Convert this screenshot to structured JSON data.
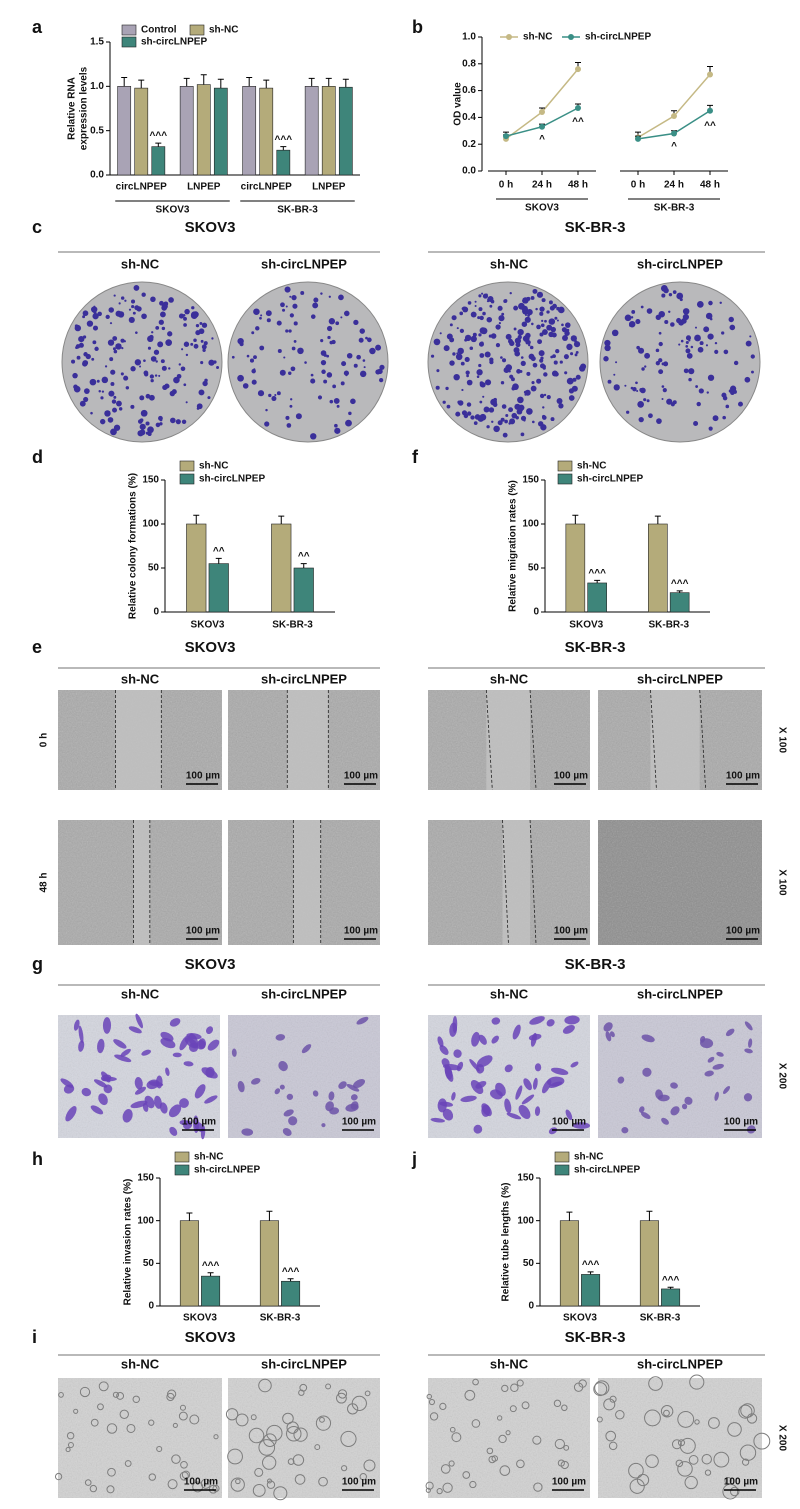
{
  "chart_data": [
    {
      "type": "bar",
      "panel_label": "a",
      "y_label": [
        "Relative RNA",
        "expression levels"
      ],
      "categories": [
        "circLNPEP",
        "LNPEP",
        "circLNPEP",
        "LNPEP"
      ],
      "groups": [
        "SKOV3",
        "SK-BR-3"
      ],
      "series": [
        {
          "name": "Control",
          "color": "#a9a3b5",
          "values": [
            1.0,
            1.0,
            1.0,
            1.0
          ],
          "errors": [
            0.1,
            0.09,
            0.1,
            0.09
          ],
          "annotations": [
            null,
            null,
            null,
            null
          ]
        },
        {
          "name": "sh-NC",
          "color": "#b4ab7a",
          "values": [
            0.98,
            1.02,
            0.98,
            1.0
          ],
          "errors": [
            0.09,
            0.11,
            0.09,
            0.09
          ],
          "annotations": [
            null,
            null,
            null,
            null
          ]
        },
        {
          "name": "sh-circLNPEP",
          "color": "#3e857a",
          "values": [
            0.32,
            0.98,
            0.28,
            0.99
          ],
          "errors": [
            0.04,
            0.1,
            0.04,
            0.09
          ],
          "annotations": [
            "^^^",
            null,
            "^^^",
            null
          ]
        }
      ],
      "ylim": [
        0,
        1.5
      ],
      "yticks": [
        {
          "value": 0,
          "label": "0.0"
        },
        0.5,
        {
          "value": 1,
          "label": "1.0"
        },
        1.5
      ]
    },
    {
      "type": "line",
      "panel_label": "b",
      "y_label": "OD value",
      "categories": [
        "0 h",
        "24 h",
        "48 h",
        "0 h",
        "24 h",
        "48 h"
      ],
      "groups": [
        "SKOV3",
        "SK-BR-3"
      ],
      "series": [
        {
          "name": "sh-NC",
          "color": "#c5b985",
          "values": [
            0.24,
            0.44,
            0.76,
            0.25,
            0.41,
            0.72
          ],
          "errors": [
            0.03,
            0.03,
            0.05,
            0.04,
            0.04,
            0.06
          ],
          "annotations": [
            null,
            null,
            null,
            null,
            null,
            null
          ]
        },
        {
          "name": "sh-circLNPEP",
          "color": "#3a8f86",
          "values": [
            0.26,
            0.33,
            0.47,
            0.24,
            0.28,
            0.45
          ],
          "errors": [
            0.03,
            0.02,
            0.03,
            0.02,
            0.02,
            0.04
          ],
          "annotations": [
            null,
            "^",
            "^^",
            null,
            "^",
            "^^"
          ]
        }
      ],
      "ylim": [
        0,
        1.0
      ],
      "yticks": [
        {
          "value": 0,
          "label": "0.0"
        },
        0.2,
        0.4,
        0.6,
        0.8,
        {
          "value": 1,
          "label": "1.0"
        }
      ]
    },
    {
      "type": "bar",
      "panel_label": "d",
      "y_label": "Relative colony formations (%)",
      "categories": [
        "SKOV3",
        "SK-BR-3"
      ],
      "series": [
        {
          "name": "sh-NC",
          "color": "#b4ab7a",
          "values": [
            100,
            100
          ],
          "errors": [
            10,
            9
          ],
          "annotations": [
            null,
            null
          ]
        },
        {
          "name": "sh-circLNPEP",
          "color": "#3e857a",
          "values": [
            55,
            50
          ],
          "errors": [
            6,
            5
          ],
          "annotations": [
            "^^",
            "^^"
          ]
        }
      ],
      "ylim": [
        0,
        150
      ],
      "yticks": [
        0,
        50,
        100,
        150
      ]
    },
    {
      "type": "bar",
      "panel_label": "f",
      "y_label": "Relative migration rates (%)",
      "categories": [
        "SKOV3",
        "SK-BR-3"
      ],
      "series": [
        {
          "name": "sh-NC",
          "color": "#b4ab7a",
          "values": [
            100,
            100
          ],
          "errors": [
            10,
            9
          ],
          "annotations": [
            null,
            null
          ]
        },
        {
          "name": "sh-circLNPEP",
          "color": "#3e857a",
          "values": [
            33,
            22
          ],
          "errors": [
            3,
            2
          ],
          "annotations": [
            "^^^",
            "^^^"
          ]
        }
      ],
      "ylim": [
        0,
        150
      ],
      "yticks": [
        0,
        50,
        100,
        150
      ]
    },
    {
      "type": "bar",
      "panel_label": "h",
      "y_label": "Relative invasion rates (%)",
      "categories": [
        "SKOV3",
        "SK-BR-3"
      ],
      "series": [
        {
          "name": "sh-NC",
          "color": "#b4ab7a",
          "values": [
            100,
            100
          ],
          "errors": [
            9,
            11
          ],
          "annotations": [
            null,
            null
          ]
        },
        {
          "name": "sh-circLNPEP",
          "color": "#3e857a",
          "values": [
            35,
            29
          ],
          "errors": [
            4,
            3
          ],
          "annotations": [
            "^^^",
            "^^^"
          ]
        }
      ],
      "ylim": [
        0,
        150
      ],
      "yticks": [
        0,
        50,
        100,
        150
      ]
    },
    {
      "type": "bar",
      "panel_label": "j",
      "y_label": "Relative tube lengths (%)",
      "categories": [
        "SKOV3",
        "SK-BR-3"
      ],
      "series": [
        {
          "name": "sh-NC",
          "color": "#b4ab7a",
          "values": [
            100,
            100
          ],
          "errors": [
            10,
            11
          ],
          "annotations": [
            null,
            null
          ]
        },
        {
          "name": "sh-circLNPEP",
          "color": "#3e857a",
          "values": [
            37,
            20
          ],
          "errors": [
            3,
            2
          ],
          "annotations": [
            "^^^",
            "^^^"
          ]
        }
      ],
      "ylim": [
        0,
        150
      ],
      "yticks": [
        0,
        50,
        100,
        150
      ]
    }
  ],
  "image_panels": {
    "c": {
      "panel_label": "c",
      "cell_lines": [
        "SKOV3",
        "SK-BR-3"
      ],
      "conditions": [
        "sh-NC",
        "sh-circLNPEP"
      ]
    },
    "e": {
      "panel_label": "e",
      "cell_lines": [
        "SKOV3",
        "SK-BR-3"
      ],
      "conditions": [
        "sh-NC",
        "sh-circLNPEP"
      ],
      "times": [
        "0 h",
        "48 h"
      ],
      "magnification": "X 100",
      "scale_bar": "100 µm"
    },
    "g": {
      "panel_label": "g",
      "cell_lines": [
        "SKOV3",
        "SK-BR-3"
      ],
      "conditions": [
        "sh-NC",
        "sh-circLNPEP"
      ],
      "magnification": "X 200",
      "scale_bar": "100 µm"
    },
    "i": {
      "panel_label": "i",
      "cell_lines": [
        "SKOV3",
        "SK-BR-3"
      ],
      "conditions": [
        "sh-NC",
        "sh-circLNPEP"
      ],
      "magnification": "X 200",
      "scale_bar": "100 µm"
    }
  }
}
